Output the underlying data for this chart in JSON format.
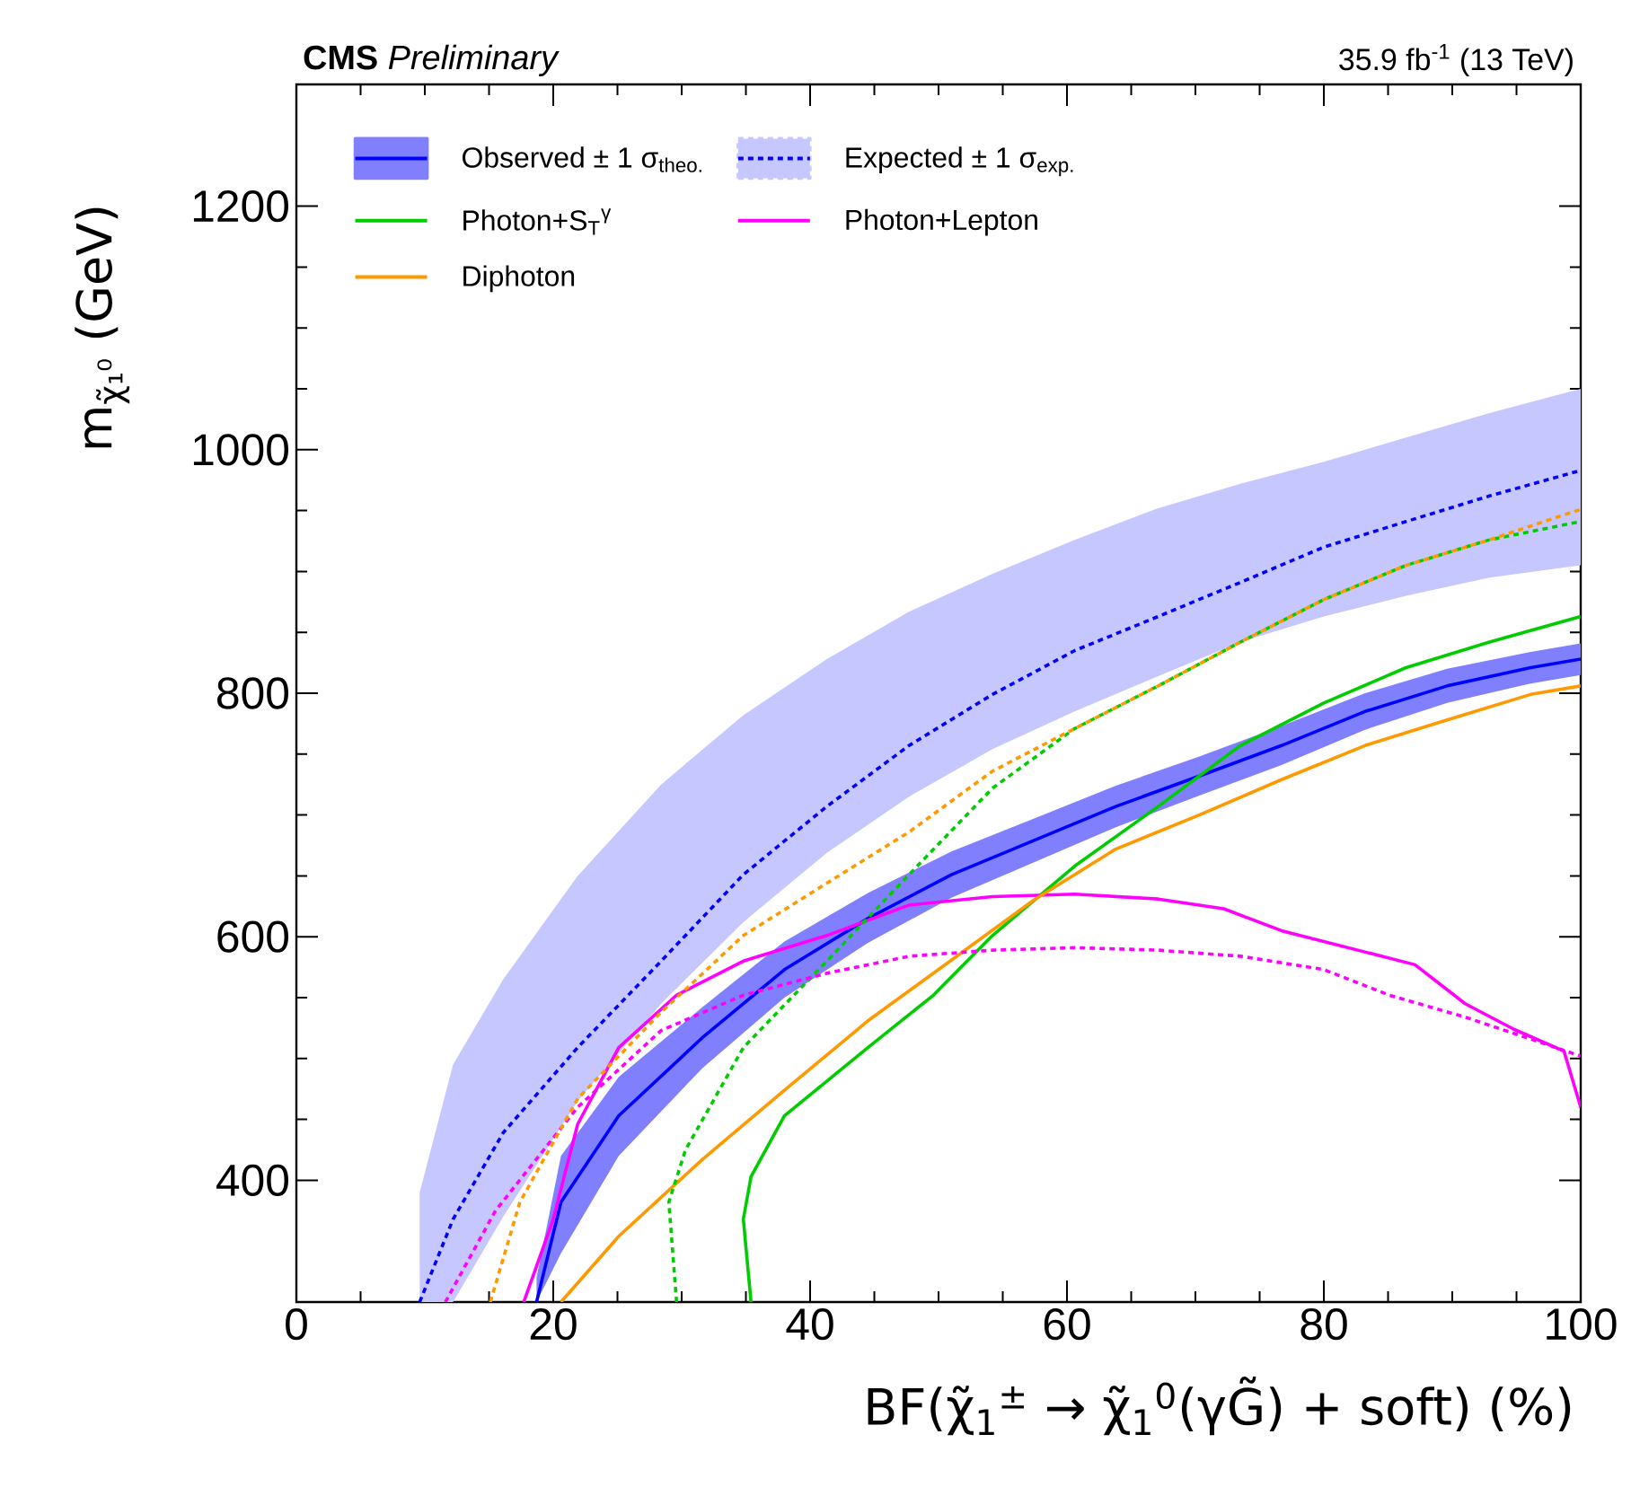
{
  "chart_data": {
    "type": "line",
    "title": "**CMS** *Preliminary*",
    "subtitle": "35.9 fb$^{-1}$ (13 TeV)",
    "xlabel": "BF(χ̃$_{1}$$^{±}$ → χ̃$_{1}$$^{0}$(γG̃) + soft) (%)",
    "ylabel": "m$_{χ̃₁⁰}$ (GeV)",
    "xlim": [
      0,
      100
    ],
    "ylim": [
      300,
      1300
    ],
    "xticks": [
      0,
      20,
      40,
      60,
      80,
      100
    ],
    "yticks": [
      400,
      600,
      800,
      1000,
      1200
    ],
    "legend": "top left",
    "series": [
      {
        "name": "Observed ± 1 σ$_{theo.}$",
        "color": "#0000ff",
        "line_style": "solid",
        "x": [
          18.7,
          20.6,
          25.1,
          31.6,
          38.0,
          44.5,
          51.0,
          57.4,
          63.8,
          70.3,
          76.7,
          83.2,
          89.6,
          96.1,
          100
        ],
        "values": [
          300,
          382,
          453,
          517,
          573,
          615,
          651,
          679,
          707,
          732,
          757,
          785,
          806,
          821,
          828
        ],
        "lower": [
          300,
          340,
          420,
          492,
          550,
          595,
          632,
          661,
          690,
          716,
          741,
          770,
          792,
          808,
          815
        ],
        "upper": [
          320,
          420,
          485,
          542,
          596,
          636,
          670,
          697,
          724,
          748,
          773,
          800,
          820,
          834,
          841
        ]
      },
      {
        "name": "Expected ± 1 σ$_{exp.}$",
        "color": "#0000ff",
        "line_style": "dotted",
        "x": [
          9.6,
          12.2,
          16.1,
          21.9,
          28.4,
          34.8,
          41.3,
          47.7,
          54.2,
          60.6,
          67.1,
          73.5,
          80.0,
          86.4,
          92.9,
          100
        ],
        "values": [
          300,
          368,
          439,
          509,
          580,
          651,
          707,
          757,
          799,
          835,
          863,
          891,
          920,
          941,
          962,
          983
        ],
        "lower": [
          300,
          300,
          370,
          465,
          545,
          612,
          669,
          715,
          754,
          785,
          814,
          842,
          863,
          880,
          895,
          905
        ],
        "upper": [
          390,
          495,
          565,
          650,
          725,
          782,
          828,
          867,
          898,
          926,
          952,
          972,
          990,
          1010,
          1030,
          1050
        ]
      },
      {
        "name": "Photon+S$_{T}$$^{γ}$",
        "color": "#00cc00",
        "line_style": "solid",
        "x": [
          35.4,
          34.8,
          35.4,
          38.0,
          44.5,
          49.6,
          54.2,
          60.6,
          67.1,
          73.5,
          80.0,
          86.4,
          92.9,
          100
        ],
        "values": [
          300,
          368,
          403,
          453,
          509,
          552,
          601,
          658,
          707,
          757,
          792,
          821,
          842,
          863
        ]
      },
      {
        "name": "Photon+Lepton",
        "color": "#ff00ff",
        "line_style": "solid",
        "x": [
          17.7,
          20.0,
          21.9,
          25.1,
          29.6,
          34.8,
          41.3,
          47.7,
          54.2,
          60.6,
          67.1,
          72.2,
          76.7,
          81.9,
          87.1,
          91.0,
          94.8,
          98.7,
          100
        ],
        "values": [
          300,
          368,
          446,
          509,
          552,
          580,
          601,
          626,
          633,
          635,
          631,
          623,
          605,
          591,
          577,
          545,
          524,
          506,
          460
        ]
      },
      {
        "name": "Diphoton",
        "color": "#ff9900",
        "line_style": "solid",
        "x": [
          20.6,
          25.1,
          31.6,
          38.0,
          44.5,
          50.9,
          57.4,
          63.8,
          70.3,
          76.7,
          83.2,
          89.6,
          96.1,
          100
        ],
        "values": [
          300,
          354,
          417,
          474,
          531,
          580,
          630,
          672,
          700,
          729,
          757,
          778,
          799,
          806
        ]
      },
      {
        "color": "#00cc00",
        "line_style": "dotted",
        "x": [
          29.6,
          29.0,
          30.3,
          34.8,
          41.3,
          47.7,
          54.2,
          60.6,
          67.1,
          73.5,
          80.0,
          86.4,
          92.9,
          100
        ],
        "values": [
          300,
          382,
          425,
          509,
          580,
          651,
          722,
          771,
          806,
          842,
          877,
          905,
          926,
          941
        ]
      },
      {
        "color": "#ff00ff",
        "line_style": "dotted",
        "x": [
          11.6,
          15.5,
          21.9,
          28.4,
          34.8,
          41.3,
          47.7,
          54.2,
          60.6,
          67.1,
          73.5,
          80.0,
          85.1,
          91.0,
          96.1,
          100
        ],
        "values": [
          300,
          375,
          460,
          523,
          552,
          570,
          584,
          589,
          591,
          589,
          584,
          573,
          552,
          534,
          516,
          502
        ]
      },
      {
        "color": "#ff9900",
        "line_style": "dotted",
        "x": [
          15.1,
          17.4,
          21.9,
          28.4,
          34.8,
          41.3,
          47.7,
          54.2,
          60.6,
          67.1,
          73.5,
          80.0,
          86.4,
          92.9,
          100
        ],
        "values": [
          300,
          382,
          467,
          538,
          601,
          644,
          686,
          736,
          771,
          806,
          842,
          877,
          905,
          926,
          951
        ]
      }
    ]
  }
}
